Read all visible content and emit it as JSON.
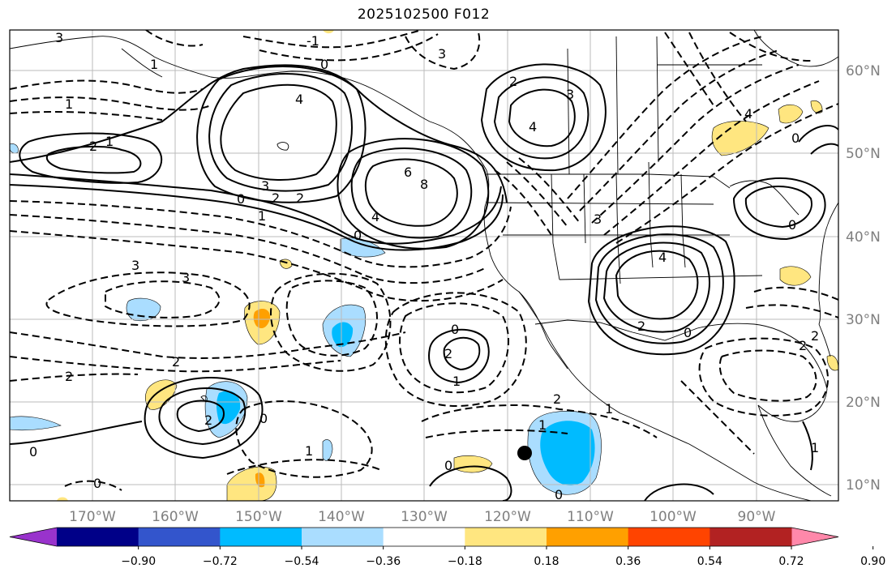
{
  "title": "2025102500 F012",
  "lat_labels": [
    "60°N",
    "50°N",
    "40°N",
    "30°N",
    "20°N",
    "10°N"
  ],
  "lon_labels": [
    "170°W",
    "160°W",
    "150°W",
    "140°W",
    "130°W",
    "120°W",
    "110°W",
    "100°W",
    "90°W"
  ],
  "colorbar": {
    "colors": [
      "#9933cc",
      "#000088",
      "#3355cc",
      "#00bbff",
      "#aaddff",
      "#ffffff",
      "#ffe680",
      "#ffa000",
      "#ff4400",
      "#b22222",
      "#ff88aa"
    ],
    "tick_labels": [
      "−0.90",
      "−0.72",
      "−0.54",
      "−0.36",
      "−0.18",
      "0.18",
      "0.36",
      "0.54",
      "0.72",
      "0.90"
    ]
  },
  "contour_labels": [
    "3",
    "1",
    "-1",
    "0",
    "1",
    "2",
    "3",
    "4",
    "0",
    "2",
    "1",
    "2",
    "3",
    "6",
    "8",
    "4",
    "0",
    "1",
    "2",
    "3",
    "4",
    "3",
    "3",
    "0",
    "1",
    "2",
    "4",
    "0",
    "3",
    "4",
    "2",
    "0",
    "2",
    "2",
    "2",
    "1",
    "0",
    "1",
    "0",
    "2",
    "1",
    "0",
    "0",
    "2",
    "2",
    "1",
    "0",
    "0"
  ],
  "marker_label": "",
  "colors": {
    "land_outline": "#000000",
    "grid": "#bbbbbb",
    "label_gray": "#7f7f7f"
  }
}
